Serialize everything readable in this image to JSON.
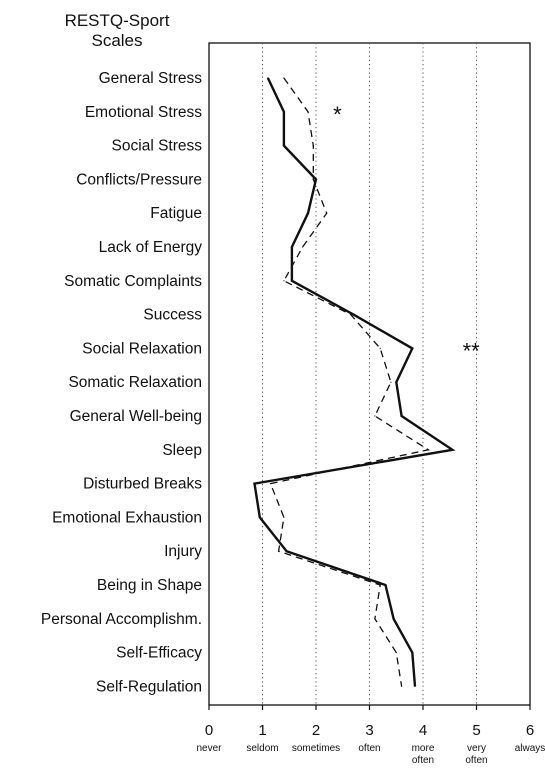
{
  "chart_data": {
    "type": "line",
    "title_lines": [
      "RESTQ-Sport",
      "Scales"
    ],
    "categories": [
      "General Stress",
      "Emotional Stress",
      "Social Stress",
      "Conflicts/Pressure",
      "Fatigue",
      "Lack of Energy",
      "Somatic Complaints",
      "Success",
      "Social Relaxation",
      "Somatic Relaxation",
      "General Well-being",
      "Sleep",
      "Disturbed Breaks",
      "Emotional Exhaustion",
      "Injury",
      "Being in Shape",
      "Personal Accomplishm.",
      "Self-Efficacy",
      "Self-Regulation"
    ],
    "series": [
      {
        "style": "solid",
        "values": [
          1.1,
          1.4,
          1.4,
          2.0,
          1.85,
          1.55,
          1.55,
          2.7,
          3.8,
          3.5,
          3.6,
          4.55,
          0.85,
          0.95,
          1.45,
          3.3,
          3.45,
          3.8,
          3.85
        ]
      },
      {
        "style": "dashed",
        "values": [
          1.4,
          1.85,
          1.95,
          1.95,
          2.2,
          1.75,
          1.4,
          2.65,
          3.2,
          3.4,
          3.1,
          4.1,
          1.15,
          1.4,
          1.3,
          3.2,
          3.1,
          3.5,
          3.6
        ]
      }
    ],
    "x_ticks": [
      0,
      1,
      2,
      3,
      4,
      5,
      6
    ],
    "x_tick_words": [
      [
        "never"
      ],
      [
        "seldom"
      ],
      [
        "sometimes"
      ],
      [
        "often"
      ],
      [
        "more",
        "often"
      ],
      [
        "very",
        "often"
      ],
      [
        "always"
      ]
    ],
    "xlim": [
      0,
      6
    ],
    "gridlines": "dotted vertical at 1-5",
    "annotations": [
      {
        "text": "*",
        "category": "Emotional Stress",
        "x": 2.4
      },
      {
        "text": "**",
        "category": "Social Relaxation",
        "x": 4.9
      }
    ]
  }
}
